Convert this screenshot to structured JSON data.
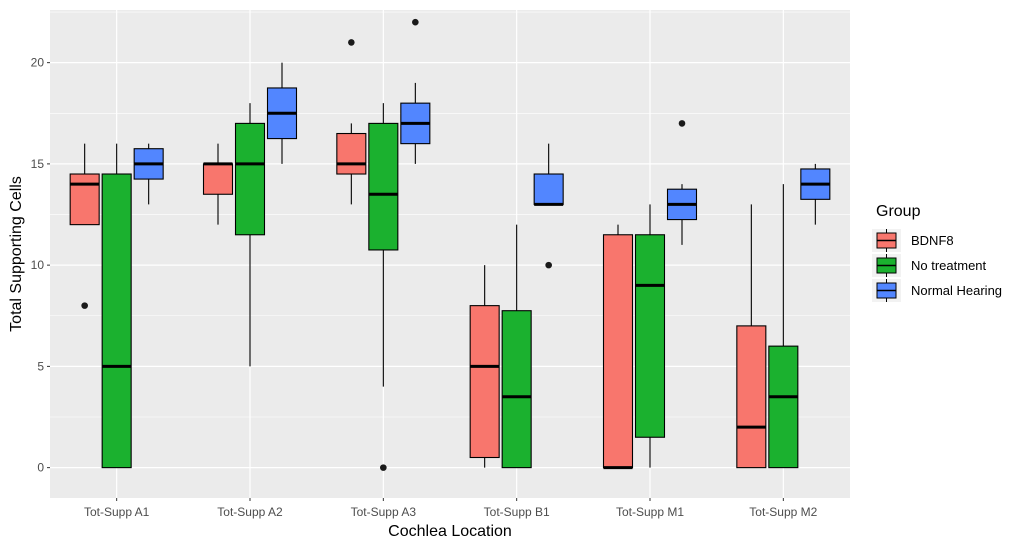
{
  "chart_data": {
    "type": "boxplot",
    "title": "",
    "xlabel": "Cochlea Location",
    "ylabel": "Total Supporting Cells",
    "ylim": [
      -1.5,
      22.6
    ],
    "yticks": [
      0,
      5,
      10,
      15,
      20
    ],
    "grid": true,
    "legend_position": "right",
    "legend_title": "Group",
    "categories": [
      "Tot-Supp A1",
      "Tot-Supp A2",
      "Tot-Supp A3",
      "Tot-Supp B1",
      "Tot-Supp M1",
      "Tot-Supp M2"
    ],
    "series": [
      {
        "name": "BDNF8",
        "color": "#F8766D",
        "boxes": [
          {
            "category": "Tot-Supp A1",
            "whisker_low": 12,
            "q1": 12,
            "median": 14,
            "q3": 14.5,
            "whisker_high": 16,
            "outliers": [
              8
            ]
          },
          {
            "category": "Tot-Supp A2",
            "whisker_low": 12,
            "q1": 13.5,
            "median": 15,
            "q3": 15,
            "whisker_high": 16,
            "outliers": []
          },
          {
            "category": "Tot-Supp A3",
            "whisker_low": 13,
            "q1": 14.5,
            "median": 15,
            "q3": 16.5,
            "whisker_high": 17,
            "outliers": [
              21
            ]
          },
          {
            "category": "Tot-Supp B1",
            "whisker_low": 0,
            "q1": 0.5,
            "median": 5,
            "q3": 8,
            "whisker_high": 10,
            "outliers": []
          },
          {
            "category": "Tot-Supp M1",
            "whisker_low": 0,
            "q1": 0,
            "median": 0,
            "q3": 11.5,
            "whisker_high": 12,
            "outliers": []
          },
          {
            "category": "Tot-Supp M2",
            "whisker_low": 0,
            "q1": 0,
            "median": 2,
            "q3": 7,
            "whisker_high": 13,
            "outliers": []
          }
        ]
      },
      {
        "name": "No treatment",
        "color": "#1BB12F",
        "boxes": [
          {
            "category": "Tot-Supp A1",
            "whisker_low": 0,
            "q1": 0,
            "median": 5,
            "q3": 14.5,
            "whisker_high": 16,
            "outliers": []
          },
          {
            "category": "Tot-Supp A2",
            "whisker_low": 5,
            "q1": 11.5,
            "median": 15,
            "q3": 17,
            "whisker_high": 18,
            "outliers": []
          },
          {
            "category": "Tot-Supp A3",
            "whisker_low": 4,
            "q1": 10.75,
            "median": 13.5,
            "q3": 17,
            "whisker_high": 18,
            "outliers": [
              0
            ]
          },
          {
            "category": "Tot-Supp B1",
            "whisker_low": 0,
            "q1": 0,
            "median": 3.5,
            "q3": 7.75,
            "whisker_high": 12,
            "outliers": []
          },
          {
            "category": "Tot-Supp M1",
            "whisker_low": 0,
            "q1": 1.5,
            "median": 9,
            "q3": 11.5,
            "whisker_high": 13,
            "outliers": []
          },
          {
            "category": "Tot-Supp M2",
            "whisker_low": 0,
            "q1": 0,
            "median": 3.5,
            "q3": 6,
            "whisker_high": 14,
            "outliers": []
          }
        ]
      },
      {
        "name": "Normal Hearing",
        "color": "#5286FF",
        "boxes": [
          {
            "category": "Tot-Supp A1",
            "whisker_low": 13,
            "q1": 14.25,
            "median": 15,
            "q3": 15.75,
            "whisker_high": 16,
            "outliers": []
          },
          {
            "category": "Tot-Supp A2",
            "whisker_low": 15,
            "q1": 16.25,
            "median": 17.5,
            "q3": 18.75,
            "whisker_high": 20,
            "outliers": []
          },
          {
            "category": "Tot-Supp A3",
            "whisker_low": 15,
            "q1": 16,
            "median": 17,
            "q3": 18,
            "whisker_high": 19,
            "outliers": [
              22
            ]
          },
          {
            "category": "Tot-Supp B1",
            "whisker_low": 13,
            "q1": 13,
            "median": 13,
            "q3": 14.5,
            "whisker_high": 16,
            "outliers": [
              10
            ]
          },
          {
            "category": "Tot-Supp M1",
            "whisker_low": 11,
            "q1": 12.25,
            "median": 13,
            "q3": 13.75,
            "whisker_high": 14,
            "outliers": [
              17
            ]
          },
          {
            "category": "Tot-Supp M2",
            "whisker_low": 12,
            "q1": 13.25,
            "median": 14,
            "q3": 14.75,
            "whisker_high": 15,
            "outliers": []
          }
        ]
      }
    ]
  }
}
